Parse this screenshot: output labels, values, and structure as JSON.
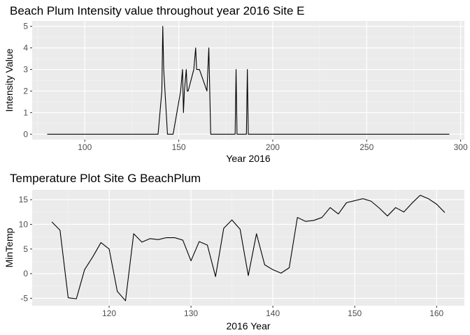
{
  "chart_data": [
    {
      "type": "line",
      "title": "Beach Plum Intensity value throughout year 2016 Site E",
      "xlabel": "Year 2016",
      "ylabel": "Intensity Value",
      "xlim": [
        72,
        302
      ],
      "ylim": [
        -0.25,
        5.25
      ],
      "xticks": [
        100,
        150,
        200,
        250,
        300
      ],
      "yticks": [
        0,
        1,
        2,
        3,
        4,
        5
      ],
      "grid": true,
      "background": "#ebebeb",
      "line_color": "#000000",
      "x": [
        80,
        139,
        141,
        141.5,
        142,
        144,
        147,
        151,
        152,
        152.5,
        153,
        154,
        154.5,
        155,
        158,
        159,
        159.5,
        160,
        161,
        165,
        166,
        166.5,
        167,
        180,
        180.5,
        181,
        183,
        186,
        186.5,
        187,
        189,
        294
      ],
      "y": [
        0,
        0,
        2,
        5,
        3,
        0,
        0,
        2,
        3,
        1,
        2,
        3,
        2,
        2,
        3,
        4,
        3,
        3,
        3,
        2,
        4,
        2,
        0,
        0,
        3,
        0,
        0,
        0,
        3,
        0,
        0,
        0
      ]
    },
    {
      "type": "line",
      "title": "Temperature Plot Site G BeachPlum",
      "xlabel": "2016 Year",
      "ylabel": "MinTemp",
      "xlim": [
        110.6,
        163.4
      ],
      "ylim": [
        -6.5,
        17
      ],
      "xticks": [
        120,
        130,
        140,
        150,
        160
      ],
      "yticks": [
        -5,
        0,
        5,
        10,
        15
      ],
      "grid": true,
      "background": "#ebebeb",
      "line_color": "#000000",
      "x": [
        113,
        114,
        115,
        116,
        117,
        118,
        119,
        120,
        121,
        122,
        123,
        124,
        125,
        126,
        127,
        128,
        129,
        130,
        131,
        132,
        133,
        134,
        135,
        136,
        137,
        138,
        139,
        140,
        141,
        142,
        143,
        144,
        145,
        146,
        147,
        148,
        149,
        150,
        151,
        152,
        153,
        154,
        155,
        156,
        157,
        158,
        159,
        160,
        161
      ],
      "y": [
        10.5,
        8.8,
        -4.9,
        -5.1,
        0.8,
        3.4,
        6.3,
        5.0,
        -3.6,
        -5.5,
        8.1,
        6.4,
        7.1,
        6.9,
        7.3,
        7.3,
        6.8,
        2.6,
        6.5,
        5.8,
        -0.6,
        9.2,
        10.9,
        9.0,
        -0.4,
        8.1,
        1.8,
        0.8,
        0.1,
        1.2,
        11.4,
        10.6,
        10.8,
        11.4,
        13.4,
        12.1,
        14.4,
        14.8,
        15.2,
        14.7,
        13.3,
        11.7,
        13.4,
        12.5,
        14.3,
        15.9,
        15.2,
        14.1,
        12.4
      ]
    }
  ]
}
